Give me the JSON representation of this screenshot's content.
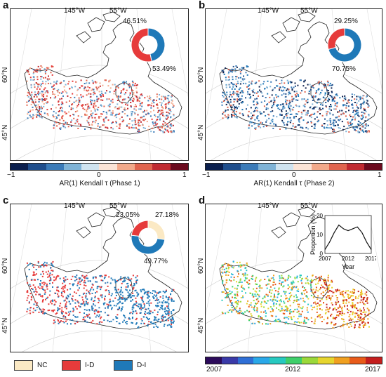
{
  "panels": {
    "a": {
      "letter": "a",
      "lon1": "145°W",
      "lon2": "55°W",
      "lat1": "60°N",
      "lat2": "45°N",
      "pct_top": "46.51%",
      "pct_bottom": "53.49%",
      "donut_fraction_red": 0.5349
    },
    "b": {
      "letter": "b",
      "lon1": "145°W",
      "lon2": "55°W",
      "lat1": "60°N",
      "lat2": "45°N",
      "pct_top": "29.25%",
      "pct_bottom": "70.75%",
      "donut_fraction_red": 0.2925
    },
    "c": {
      "letter": "c",
      "lon1": "145°W",
      "lon2": "55°W",
      "lat1": "60°N",
      "lat2": "45°N",
      "pct_left": "23.05%",
      "pct_right": "27.18%",
      "pct_bottom": "49.77%",
      "donut_fractions": {
        "nc": 0.2718,
        "blue": 0.4977,
        "red": 0.2305
      }
    },
    "d": {
      "letter": "d",
      "lon1": "145°W",
      "lon2": "55°W",
      "lat1": "60°N",
      "lat2": "45°N",
      "inset_ylabel": "Proportion (%)",
      "inset_xlabel": "Year",
      "inset_yticks": [
        "0",
        "10",
        "20"
      ],
      "inset_xticks": [
        "2007",
        "2012",
        "2017"
      ]
    }
  },
  "colorbars": {
    "ab": {
      "tick_min": "−1",
      "tick_mid": "0",
      "tick_max": "1",
      "colors": [
        "#0b1f4d",
        "#1f4e8c",
        "#3b7bb8",
        "#7fb3d6",
        "#cfe3ef",
        "#fbe4d6",
        "#f2a98a",
        "#e0644e",
        "#c02a31",
        "#6b0a1e"
      ]
    },
    "a_label": "AR(1) Kendall τ (Phase 1)",
    "b_label": "AR(1) Kendall τ (Phase 2)",
    "d": {
      "tick_min": "2007",
      "tick_mid": "2012",
      "tick_max": "2017",
      "colors": [
        "#2b0a5a",
        "#3a3aa8",
        "#2f6fd6",
        "#2aa8e8",
        "#27c9c0",
        "#3fcf6a",
        "#9bd83a",
        "#e6d52e",
        "#f0a020",
        "#e85b1a",
        "#c41e1e"
      ]
    }
  },
  "legend_c": [
    {
      "label": "NC",
      "color": "#fbe9c4"
    },
    {
      "label": "I-D",
      "color": "#e63b3b"
    },
    {
      "label": "D-I",
      "color": "#1f79b8"
    }
  ],
  "inset_d_series": {
    "years": [
      2007,
      2008,
      2009,
      2010,
      2011,
      2012,
      2013,
      2014,
      2015,
      2016,
      2017
    ],
    "values": [
      2,
      6,
      11,
      15,
      13,
      12,
      13,
      14,
      11,
      6,
      2
    ]
  },
  "colors": {
    "red": "#e63b3b",
    "blue": "#1f79b8",
    "nc": "#fbe9c4"
  }
}
